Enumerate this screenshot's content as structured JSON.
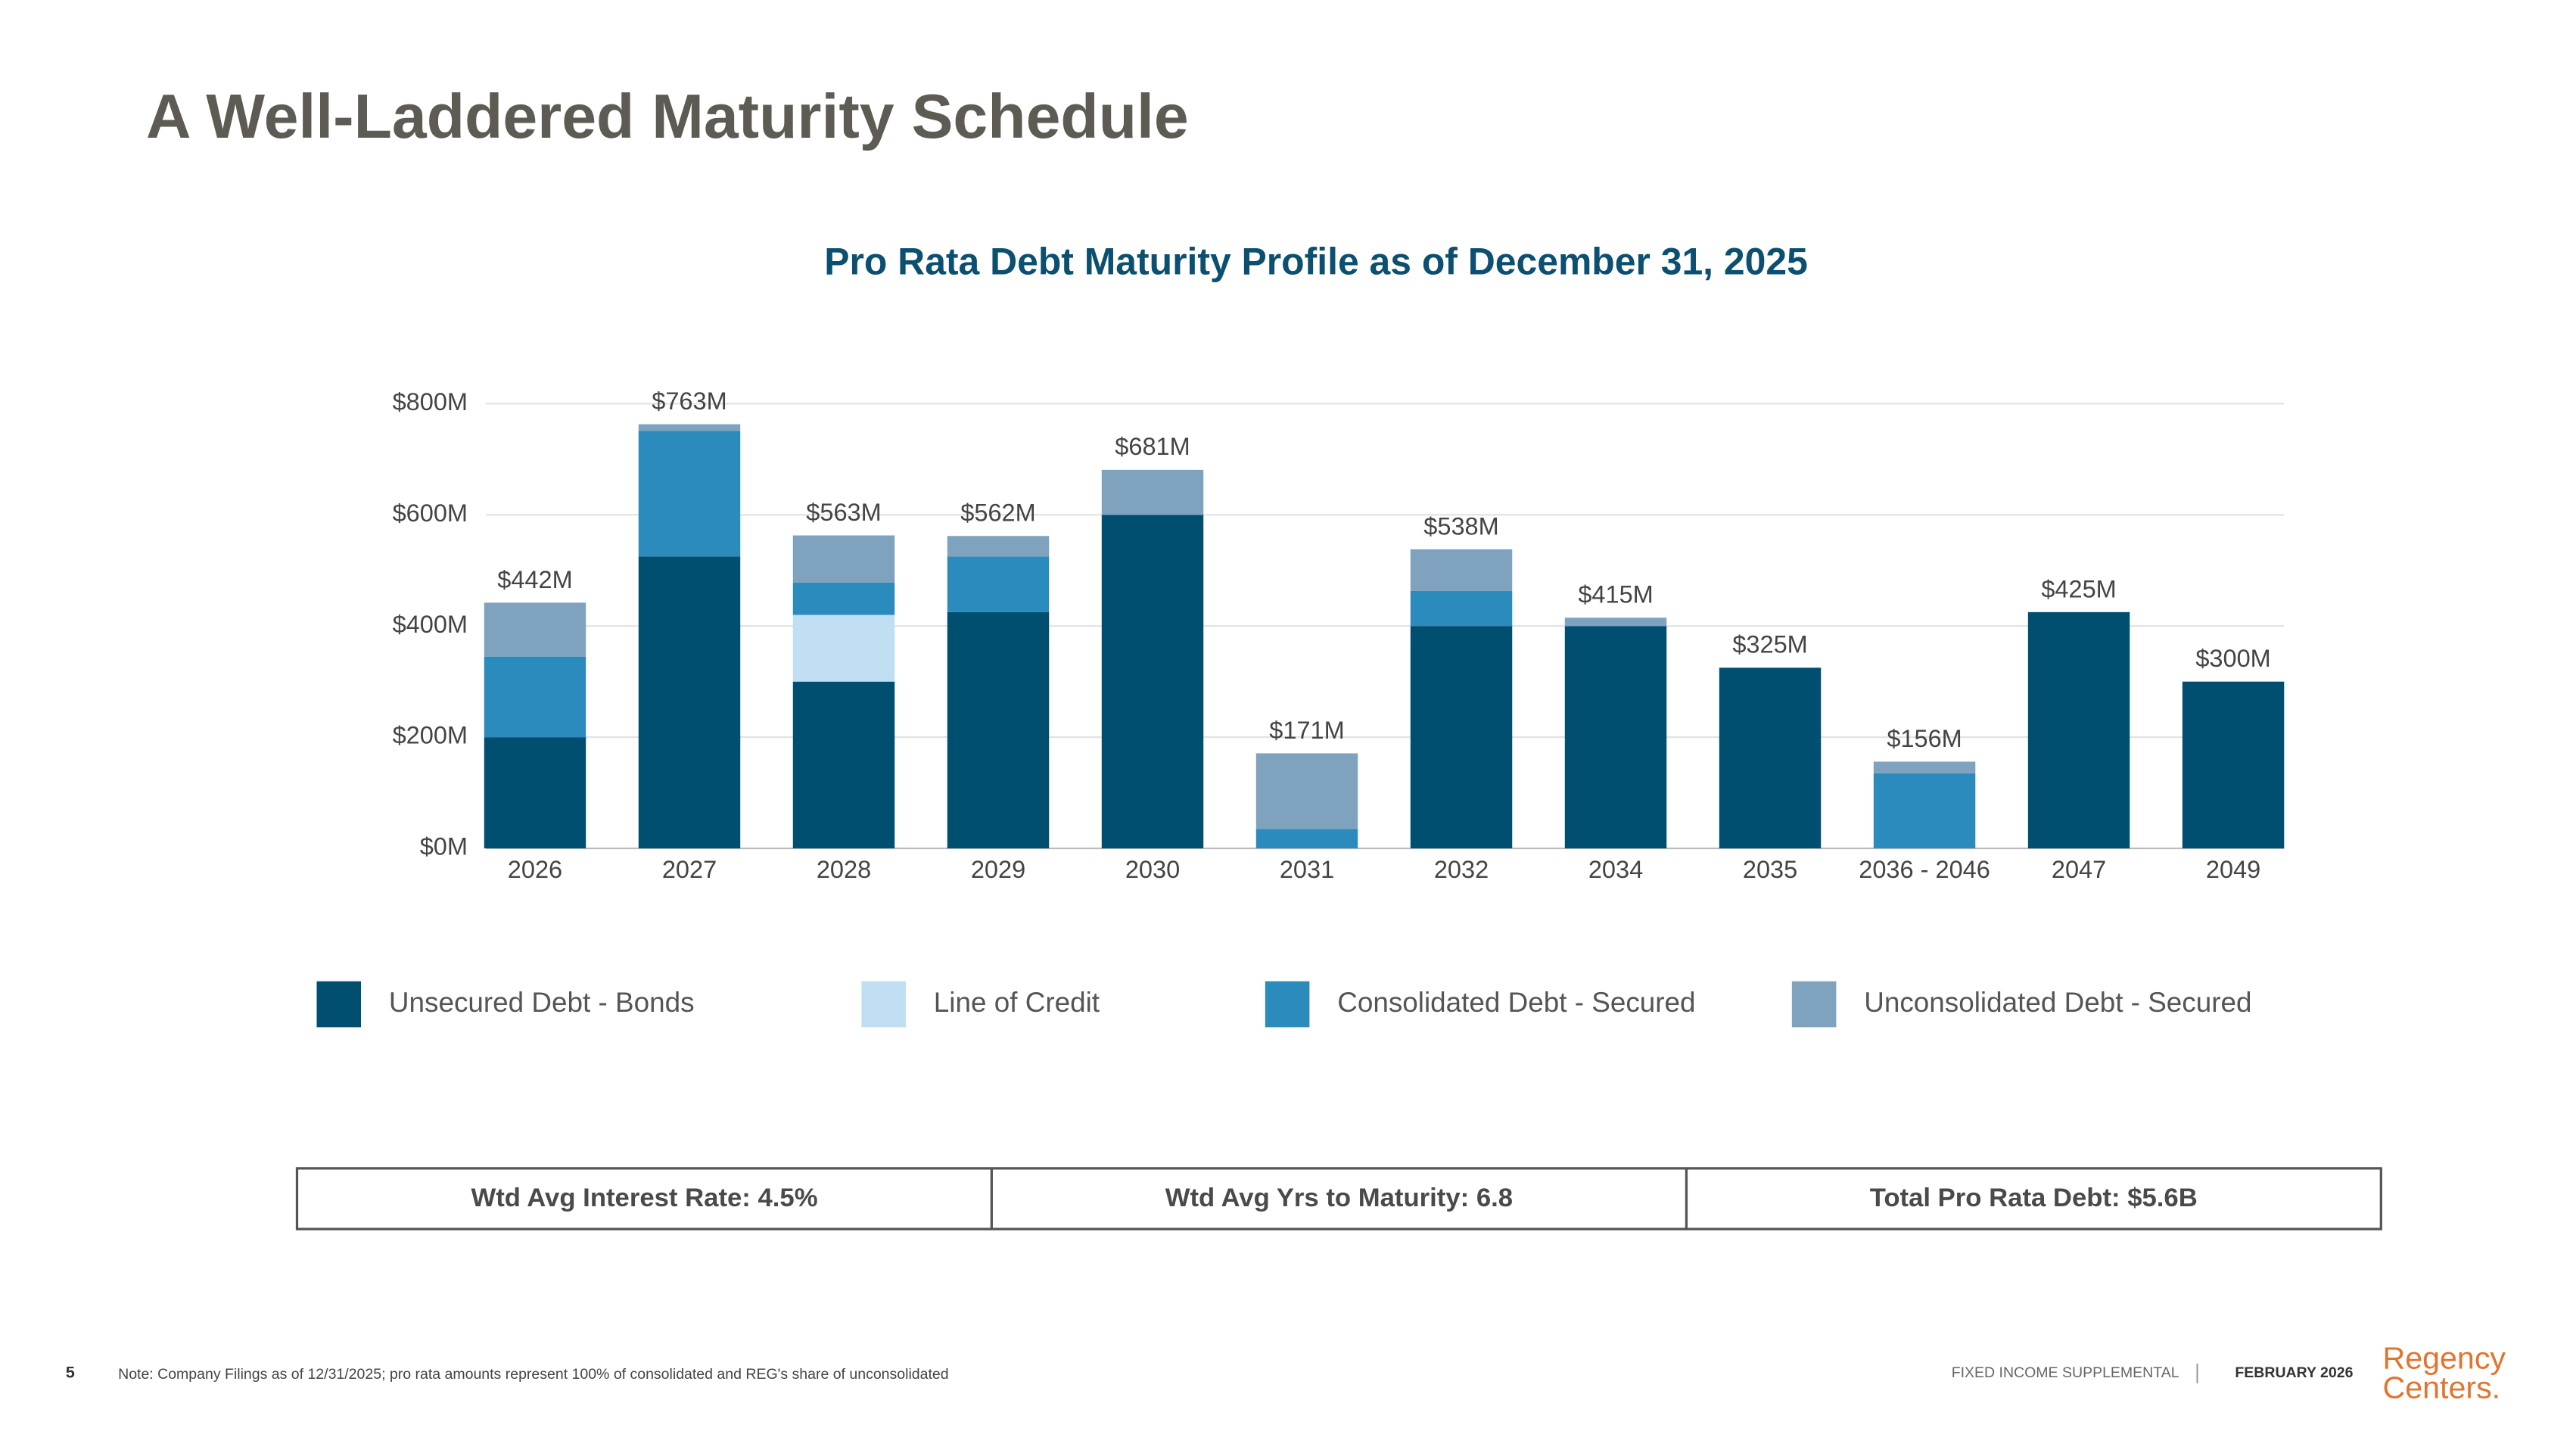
{
  "title": "A Well-Laddered Maturity Schedule",
  "chart_data": {
    "type": "stacked-bar",
    "title": "Pro Rata Debt Maturity Profile as of December 31, 2025",
    "categories": [
      "2026",
      "2027",
      "2028",
      "2029",
      "2030",
      "2031",
      "2032",
      "2034",
      "2035",
      "2036 - 2046",
      "2047",
      "2049"
    ],
    "series": [
      {
        "name": "Unsecured Debt - Bonds",
        "color": "#004f71",
        "values": [
          200,
          525,
          300,
          425,
          600,
          null,
          400,
          400,
          325,
          null,
          425,
          300
        ]
      },
      {
        "name": "Line of Credit",
        "color": "#c0dff2",
        "values": [
          null,
          null,
          120,
          null,
          null,
          null,
          null,
          null,
          null,
          null,
          null,
          null
        ]
      },
      {
        "name": "Consolidated Debt - Secured",
        "color": "#2c8bbd",
        "values": [
          145,
          226,
          58,
          100,
          null,
          35,
          63,
          null,
          null,
          135,
          null,
          null
        ]
      },
      {
        "name": "Unconsolidated Debt - Secured",
        "color": "#7fa3bf",
        "values": [
          97,
          12,
          85,
          37,
          81,
          136,
          75,
          15,
          null,
          21,
          null,
          null
        ]
      }
    ],
    "totals": {
      "values": [
        442,
        763,
        563,
        562,
        681,
        171,
        538,
        415,
        325,
        156,
        425,
        300
      ],
      "value_labels": [
        "$442M",
        "$763M",
        "$563M",
        "$562M",
        "$681M",
        "$171M",
        "$538M",
        "$415M",
        "$325M",
        "$156M",
        "$425M",
        "$300M"
      ]
    },
    "ylim": [
      0,
      800
    ],
    "yticks": [
      {
        "value": 0,
        "label": "$0M"
      },
      {
        "value": 200,
        "label": "$200M"
      },
      {
        "value": 400,
        "label": "$400M"
      },
      {
        "value": 600,
        "label": "$600M"
      },
      {
        "value": 800,
        "label": "$800M"
      }
    ],
    "grid": true,
    "legend": "bottom"
  },
  "summary": [
    "Wtd Avg Interest Rate: 4.5%",
    "Wtd Avg Yrs to Maturity: 6.8",
    "Total Pro Rata Debt: $5.6B"
  ],
  "footer": {
    "page_number": "5",
    "note": "Note: Company Filings as of 12/31/2025; pro rata amounts represent 100% of consolidated and REG's share of unconsolidated",
    "document": "FIXED INCOME SUPPLEMENTAL",
    "date": "FEBRUARY 2026",
    "logo_line1": "Regency",
    "logo_line2": "Centers."
  }
}
